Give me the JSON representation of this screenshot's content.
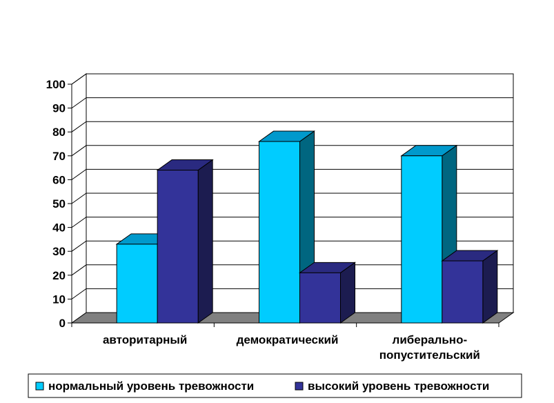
{
  "chart_data": {
    "type": "bar",
    "categories": [
      [
        "авторитарный"
      ],
      [
        "демократический"
      ],
      [
        "либерально-",
        "попустительский"
      ]
    ],
    "series": [
      {
        "name": "нормальный уровень тревожности",
        "values": [
          33,
          76,
          70
        ],
        "color": "#00CCFF",
        "top_color": "#0099CC",
        "side_color": "#006680"
      },
      {
        "name": "высокий уровень тревожности",
        "values": [
          64,
          21,
          26
        ],
        "color": "#333399",
        "top_color": "#2A2A80",
        "side_color": "#1C1C50"
      }
    ],
    "ylim": [
      0,
      100
    ],
    "yticks": [
      0,
      10,
      20,
      30,
      40,
      50,
      60,
      70,
      80,
      90,
      100
    ],
    "grid": true,
    "legend": "bottom",
    "floor_color": "#808080"
  }
}
